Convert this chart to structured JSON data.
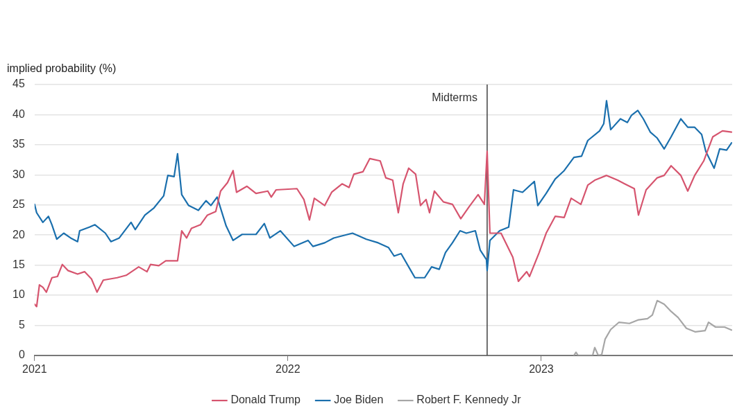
{
  "chart_data": {
    "type": "line",
    "ylabel": "implied probability (%)",
    "xlim": [
      "2021-01-01",
      "2023-10-03"
    ],
    "xticks": [
      "2021",
      "2022",
      "2023"
    ],
    "ylim": [
      0,
      45
    ],
    "yticks": [
      0,
      5,
      10,
      15,
      20,
      25,
      30,
      35,
      40,
      45
    ],
    "grid": "y",
    "legend": "bottom",
    "marker": "none",
    "line_style": "solid",
    "ref_lines": [
      {
        "axis": "x",
        "value": "2022-10-15",
        "label": "Midterms",
        "color": "#404040"
      }
    ],
    "series": [
      {
        "name": "Donald Trump",
        "color": "#d6546e",
        "x": [
          "2021-01-01",
          "2021-01-04",
          "2021-01-08",
          "2021-01-13",
          "2021-01-18",
          "2021-01-26",
          "2021-02-03",
          "2021-02-10",
          "2021-02-18",
          "2021-03-04",
          "2021-03-14",
          "2021-03-24",
          "2021-04-01",
          "2021-04-10",
          "2021-04-30",
          "2021-05-13",
          "2021-05-31",
          "2021-06-12",
          "2021-06-17",
          "2021-06-29",
          "2021-07-09",
          "2021-07-26",
          "2021-08-01",
          "2021-08-08",
          "2021-08-15",
          "2021-08-28",
          "2021-09-07",
          "2021-09-19",
          "2021-09-26",
          "2021-10-06",
          "2021-10-14",
          "2021-10-19",
          "2021-11-03",
          "2021-11-16",
          "2021-12-03",
          "2021-12-08",
          "2021-12-15",
          "2022-01-14",
          "2022-01-24",
          "2022-02-01",
          "2022-02-08",
          "2022-02-23",
          "2022-03-05",
          "2022-03-20",
          "2022-03-30",
          "2022-04-06",
          "2022-04-19",
          "2022-04-29",
          "2022-05-14",
          "2022-05-22",
          "2022-06-01",
          "2022-06-09",
          "2022-06-16",
          "2022-06-24",
          "2022-07-04",
          "2022-07-11",
          "2022-07-19",
          "2022-07-24",
          "2022-07-31",
          "2022-08-13",
          "2022-08-26",
          "2022-09-07",
          "2022-09-19",
          "2022-10-02",
          "2022-10-11",
          "2022-10-15",
          "2022-10-19",
          "2022-11-04",
          "2022-11-21",
          "2022-11-29",
          "2022-12-11",
          "2022-12-15",
          "2022-12-29",
          "2023-01-08",
          "2023-01-21",
          "2023-02-03",
          "2023-02-13",
          "2023-02-27",
          "2023-03-09",
          "2023-03-19",
          "2023-04-05",
          "2023-04-21",
          "2023-05-01",
          "2023-05-15",
          "2023-05-21",
          "2023-06-01",
          "2023-06-17",
          "2023-06-27",
          "2023-07-07",
          "2023-07-21",
          "2023-07-31",
          "2023-08-10",
          "2023-08-23",
          "2023-09-05",
          "2023-09-19",
          "2023-10-02"
        ],
        "values": [
          8.5,
          8.1,
          11.7,
          11.3,
          10.5,
          12.9,
          13.1,
          15.1,
          14.1,
          13.5,
          13.9,
          12.7,
          10.5,
          12.5,
          12.9,
          13.3,
          14.7,
          13.9,
          15.1,
          14.9,
          15.7,
          15.7,
          20.7,
          19.5,
          21.1,
          21.7,
          23.3,
          23.9,
          27.3,
          28.7,
          30.7,
          27.1,
          28.1,
          26.9,
          27.3,
          26.3,
          27.5,
          27.7,
          25.9,
          22.5,
          26.1,
          24.9,
          27.1,
          28.5,
          27.9,
          30.1,
          30.5,
          32.7,
          32.3,
          29.5,
          29.1,
          23.7,
          28.5,
          31.1,
          30.1,
          24.9,
          25.9,
          23.7,
          27.3,
          25.5,
          25.1,
          22.7,
          24.7,
          26.7,
          25.1,
          33.9,
          20.3,
          20.3,
          16.3,
          12.3,
          13.9,
          13.1,
          17.1,
          20.3,
          23.1,
          22.9,
          26.1,
          25.1,
          28.3,
          29.1,
          29.9,
          29.1,
          28.5,
          27.7,
          23.3,
          27.5,
          29.5,
          29.9,
          31.5,
          29.9,
          27.3,
          29.9,
          32.3,
          36.3,
          37.3,
          37.1
        ]
      },
      {
        "name": "Joe Biden",
        "color": "#1a6fad",
        "x": [
          "2021-01-01",
          "2021-01-04",
          "2021-01-13",
          "2021-01-21",
          "2021-01-26",
          "2021-02-02",
          "2021-02-12",
          "2021-02-22",
          "2021-03-04",
          "2021-03-07",
          "2021-03-21",
          "2021-03-29",
          "2021-04-13",
          "2021-04-21",
          "2021-05-03",
          "2021-05-20",
          "2021-05-26",
          "2021-06-09",
          "2021-06-22",
          "2021-07-06",
          "2021-07-12",
          "2021-07-21",
          "2021-07-26",
          "2021-08-01",
          "2021-08-11",
          "2021-08-25",
          "2021-09-05",
          "2021-09-12",
          "2021-09-21",
          "2021-10-04",
          "2021-10-14",
          "2021-10-27",
          "2021-11-16",
          "2021-11-28",
          "2021-12-06",
          "2021-12-21",
          "2022-01-10",
          "2022-01-30",
          "2022-02-06",
          "2022-02-23",
          "2022-03-08",
          "2022-04-04",
          "2022-04-24",
          "2022-05-11",
          "2022-05-26",
          "2022-06-03",
          "2022-06-13",
          "2022-06-27",
          "2022-07-03",
          "2022-07-17",
          "2022-07-27",
          "2022-08-07",
          "2022-08-16",
          "2022-08-26",
          "2022-09-06",
          "2022-09-15",
          "2022-09-28",
          "2022-10-05",
          "2022-10-14",
          "2022-10-15",
          "2022-10-19",
          "2022-11-02",
          "2022-11-15",
          "2022-11-22",
          "2022-12-05",
          "2022-12-22",
          "2022-12-27",
          "2023-01-08",
          "2023-01-21",
          "2023-02-03",
          "2023-02-17",
          "2023-02-28",
          "2023-03-09",
          "2023-03-26",
          "2023-04-01",
          "2023-04-05",
          "2023-04-11",
          "2023-04-25",
          "2023-05-05",
          "2023-05-11",
          "2023-05-20",
          "2023-05-28",
          "2023-06-07",
          "2023-06-17",
          "2023-06-27",
          "2023-07-07",
          "2023-07-21",
          "2023-07-31",
          "2023-08-10",
          "2023-08-20",
          "2023-08-26",
          "2023-09-07",
          "2023-09-15",
          "2023-09-25",
          "2023-10-02"
        ],
        "values": [
          25.1,
          23.7,
          22.1,
          23.1,
          21.7,
          19.3,
          20.3,
          19.5,
          18.9,
          20.7,
          21.3,
          21.7,
          20.3,
          18.9,
          19.5,
          22.1,
          20.9,
          23.3,
          24.5,
          26.5,
          29.9,
          29.7,
          33.5,
          26.7,
          24.9,
          24.1,
          25.7,
          24.9,
          26.3,
          21.5,
          19.1,
          20.1,
          20.1,
          21.9,
          19.5,
          20.7,
          18.1,
          19.1,
          18.1,
          18.7,
          19.5,
          20.3,
          19.3,
          18.7,
          17.9,
          16.5,
          16.9,
          14.1,
          12.9,
          12.9,
          14.7,
          14.3,
          17.1,
          18.7,
          20.7,
          20.3,
          20.7,
          17.5,
          15.9,
          14.1,
          19.1,
          20.7,
          21.3,
          27.5,
          27.1,
          28.9,
          24.9,
          26.9,
          29.3,
          30.7,
          32.9,
          33.1,
          35.7,
          37.3,
          38.5,
          42.3,
          37.5,
          39.3,
          38.7,
          39.9,
          40.7,
          39.3,
          37.1,
          36.1,
          34.3,
          36.3,
          39.3,
          37.9,
          37.9,
          36.7,
          33.9,
          31.1,
          34.3,
          34.1,
          35.3
        ]
      },
      {
        "name": "Robert F. Kennedy Jr",
        "color": "#a6a6a6",
        "x": [
          "2023-02-17",
          "2023-02-20",
          "2023-02-23",
          "2023-03-16",
          "2023-03-19",
          "2023-03-24",
          "2023-03-29",
          "2023-04-03",
          "2023-04-11",
          "2023-04-23",
          "2023-05-08",
          "2023-05-21",
          "2023-06-03",
          "2023-06-10",
          "2023-06-17",
          "2023-06-27",
          "2023-07-07",
          "2023-07-17",
          "2023-07-29",
          "2023-08-11",
          "2023-08-25",
          "2023-08-30",
          "2023-09-09",
          "2023-09-22",
          "2023-10-02"
        ],
        "values": [
          0,
          0.5,
          0,
          0,
          1.3,
          0,
          0.1,
          2.7,
          4.3,
          5.5,
          5.3,
          5.9,
          6.1,
          6.7,
          9.1,
          8.5,
          7.3,
          6.3,
          4.5,
          3.9,
          4.1,
          5.5,
          4.7,
          4.7,
          4.2
        ]
      }
    ]
  }
}
